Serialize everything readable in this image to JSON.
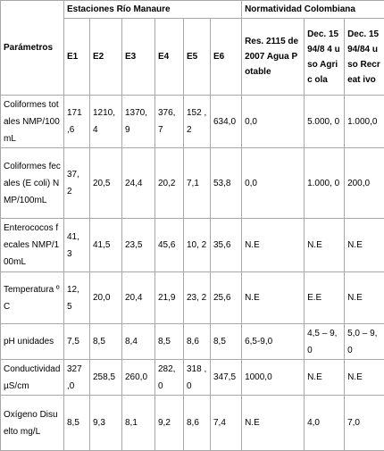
{
  "header": {
    "parametros": "Parámetros",
    "group_estaciones": "Estaciones Río Manaure",
    "group_normatividad": "Normatividad Colombiana",
    "stations": [
      "E1",
      "E2",
      "E3",
      "E4",
      "E5",
      "E6"
    ],
    "norms": [
      "Res. 2115 de 2007 Agua Potable",
      "Dec. 1594/8 4 uso Agric ola",
      "Dec. 1594/84 uso Recreat ivo"
    ]
  },
  "rows": [
    {
      "param": "Coliformes totales NMP/100mL",
      "values": [
        "171 ,6",
        "1210, 4",
        "1370, 9",
        "376, 7",
        "152 ,2",
        "634,0"
      ],
      "res2115": "0,0",
      "agricola": "5.000, 0",
      "recreativo": "1.000,0"
    },
    {
      "param": "Coliformes fecales (E coli) NMP/100mL",
      "values": [
        "37, 2",
        "20,5",
        "24,4",
        "20,2",
        "7,1",
        "53,8"
      ],
      "res2115": "0,0",
      "agricola": "1.000, 0",
      "recreativo": "200,0"
    },
    {
      "param": "Enterococos fecales NMP/100mL",
      "values": [
        "41, 3",
        "41,5",
        "23,5",
        "45,6",
        "10, 2",
        "35,6"
      ],
      "res2115": "N.E",
      "agricola": "N.E",
      "recreativo": "N.E"
    },
    {
      "param": "Temperatura ºC",
      "values": [
        "12, 5",
        "20,0",
        "20,4",
        "21,9",
        "23, 2",
        "25,6"
      ],
      "res2115": "N.E",
      "agricola": "E.E",
      "recreativo": "N.E"
    },
    {
      "param": "pH unidades",
      "values": [
        "7,5",
        "8,5",
        "8,4",
        "8,5",
        "8,6",
        "8,5"
      ],
      "res2115": "6,5-9,0",
      "agricola": "4,5 – 9,0",
      "recreativo": "5,0 – 9,0"
    },
    {
      "param": "Conductividad µS/cm",
      "values": [
        "327 ,0",
        "258,5",
        "260,0",
        "282, 0",
        "318 ,0",
        "347,5"
      ],
      "res2115": "1000,0",
      "agricola": "N.E",
      "recreativo": "N.E"
    },
    {
      "param": "Oxígeno Disuelto mg/L",
      "values": [
        "8,5",
        "9,3",
        "8,1",
        "9,2",
        "8,6",
        "7,4"
      ],
      "res2115": "N.E",
      "agricola": "4,0",
      "recreativo": "7,0"
    }
  ]
}
